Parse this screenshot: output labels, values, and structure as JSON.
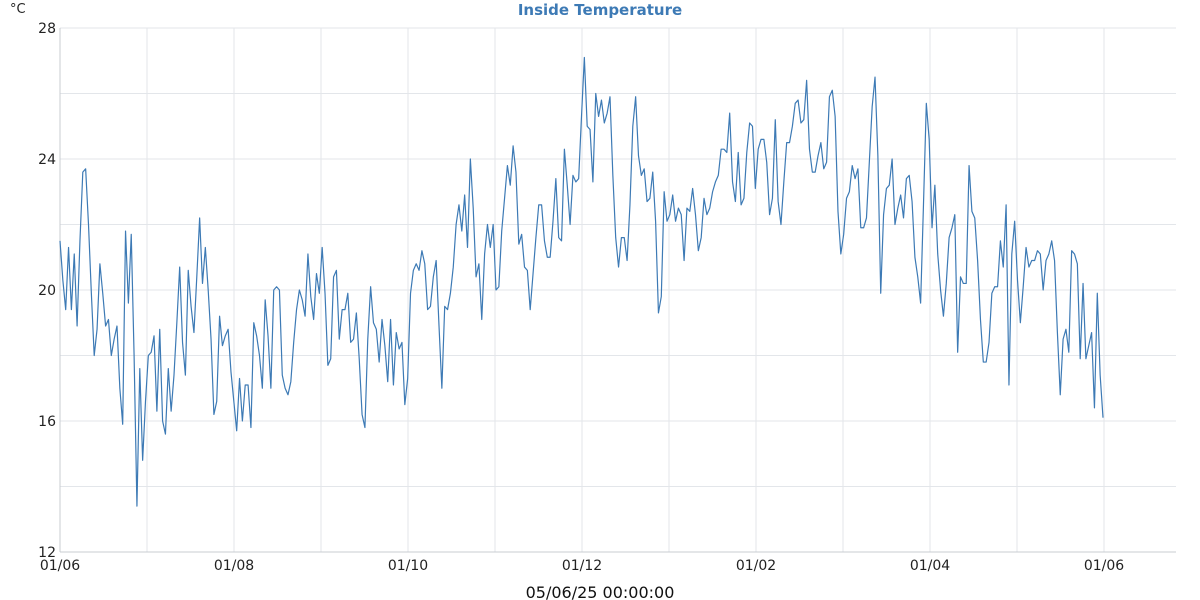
{
  "chart_data": {
    "type": "line",
    "title": "Inside Temperature",
    "unit": "°C",
    "xlabel": "05/06/25 00:00:00",
    "ylim": [
      12,
      28
    ],
    "y_ticks": [
      "12",
      "16",
      "20",
      "24",
      "28"
    ],
    "x_ticks": [
      "01/06",
      "01/08",
      "01/10",
      "01/12",
      "01/02",
      "01/04",
      "01/06"
    ],
    "grid": true,
    "colors": {
      "line": "#3d7ab5",
      "title": "#3d7ab5",
      "grid": "#e3e6ea",
      "axis": "#c8ccd2"
    },
    "series": [
      {
        "values": [
          21.5,
          20.3,
          19.4,
          21.3,
          19.4,
          21.1,
          18.9,
          21.5,
          23.6,
          23.7,
          22,
          19.9,
          18,
          18.8,
          20.8,
          19.9,
          18.9,
          19.1,
          18,
          18.5,
          18.9,
          17,
          15.9,
          21.8,
          19.6,
          21.7,
          18,
          13.4,
          17.6,
          14.8,
          16.6,
          18,
          18.1,
          18.6,
          16.3,
          18.8,
          16,
          15.6,
          17.6,
          16.3,
          17.4,
          19,
          20.7,
          18.4,
          17.4,
          20.6,
          19.5,
          18.7,
          20.4,
          22.2,
          20.2,
          21.3,
          20,
          18.5,
          16.2,
          16.6,
          19.2,
          18.3,
          18.6,
          18.8,
          17.5,
          16.6,
          15.7,
          17.3,
          16,
          17.1,
          17.1,
          15.8,
          19,
          18.6,
          18,
          17,
          19.7,
          18.6,
          17,
          20,
          20.1,
          20,
          17.4,
          17,
          16.8,
          17.2,
          18.4,
          19.4,
          20,
          19.7,
          19.2,
          21.1,
          19.8,
          19.1,
          20.5,
          19.9,
          21.3,
          19.9,
          17.7,
          17.9,
          20.4,
          20.6,
          18.5,
          19.4,
          19.4,
          19.9,
          18.4,
          18.5,
          19.3,
          17.9,
          16.2,
          15.8,
          18.5,
          20.1,
          19,
          18.8,
          17.8,
          19.1,
          18.3,
          17.2,
          19.1,
          17.1,
          18.7,
          18.2,
          18.4,
          16.5,
          17.3,
          19.9,
          20.6,
          20.8,
          20.6,
          21.2,
          20.8,
          19.4,
          19.5,
          20.4,
          20.9,
          18.9,
          17,
          19.5,
          19.4,
          19.9,
          20.7,
          22,
          22.6,
          21.8,
          22.9,
          21.3,
          24,
          22.5,
          20.4,
          20.8,
          19.1,
          21.1,
          22,
          21.3,
          22,
          20,
          20.1,
          21.8,
          22.8,
          23.8,
          23.2,
          24.4,
          23.6,
          21.4,
          21.7,
          20.7,
          20.6,
          19.4,
          20.5,
          21.6,
          22.6,
          22.6,
          21.5,
          21,
          21,
          22.1,
          23.4,
          21.6,
          21.5,
          24.3,
          23.2,
          22,
          23.5,
          23.3,
          23.4,
          25.3,
          27.1,
          25,
          24.9,
          23.3,
          26,
          25.3,
          25.8,
          25.1,
          25.4,
          25.9,
          23.5,
          21.6,
          20.7,
          21.6,
          21.6,
          20.9,
          22.6,
          25,
          25.9,
          24.1,
          23.5,
          23.7,
          22.7,
          22.8,
          23.6,
          22.1,
          19.3,
          19.8,
          23,
          22.1,
          22.3,
          22.9,
          22.1,
          22.5,
          22.3,
          20.9,
          22.5,
          22.4,
          23.1,
          22.3,
          21.2,
          21.6,
          22.8,
          22.3,
          22.5,
          23,
          23.3,
          23.5,
          24.3,
          24.3,
          24.2,
          25.4,
          23.3,
          22.7,
          24.2,
          22.6,
          22.8,
          24.2,
          25.1,
          25,
          23.1,
          24.3,
          24.6,
          24.6,
          23.9,
          22.3,
          22.8,
          25.2,
          22.7,
          22,
          23.3,
          24.5,
          24.5,
          25,
          25.7,
          25.8,
          25.1,
          25.2,
          26.4,
          24.3,
          23.6,
          23.6,
          24.1,
          24.5,
          23.7,
          23.9,
          25.9,
          26.1,
          25.3,
          22.4,
          21.1,
          21.7,
          22.8,
          23,
          23.8,
          23.4,
          23.7,
          21.9,
          21.9,
          22.2,
          23.9,
          25.6,
          26.5,
          24.1,
          19.9,
          22.3,
          23.1,
          23.2,
          24,
          22,
          22.5,
          22.9,
          22.2,
          23.4,
          23.5,
          22.7,
          21,
          20.4,
          19.6,
          22.6,
          25.7,
          24.6,
          21.9,
          23.2,
          21.1,
          20,
          19.2,
          20.2,
          21.6,
          21.9,
          22.3,
          18.1,
          20.4,
          20.2,
          20.2,
          23.8,
          22.4,
          22.2,
          20.9,
          19.1,
          17.8,
          17.8,
          18.4,
          19.9,
          20.1,
          20.1,
          21.5,
          20.7,
          22.6,
          17.1,
          21.1,
          22.1,
          20.3,
          19,
          20.1,
          21.3,
          20.7,
          20.9,
          20.9,
          21.2,
          21.1,
          20,
          20.9,
          21.1,
          21.5,
          20.9,
          18.7,
          16.8,
          18.5,
          18.8,
          18.1,
          21.2,
          21.1,
          20.8,
          17.9,
          20.2,
          17.9,
          18.3,
          18.7,
          16.4,
          19.9,
          17.4,
          16.1
        ]
      }
    ]
  }
}
